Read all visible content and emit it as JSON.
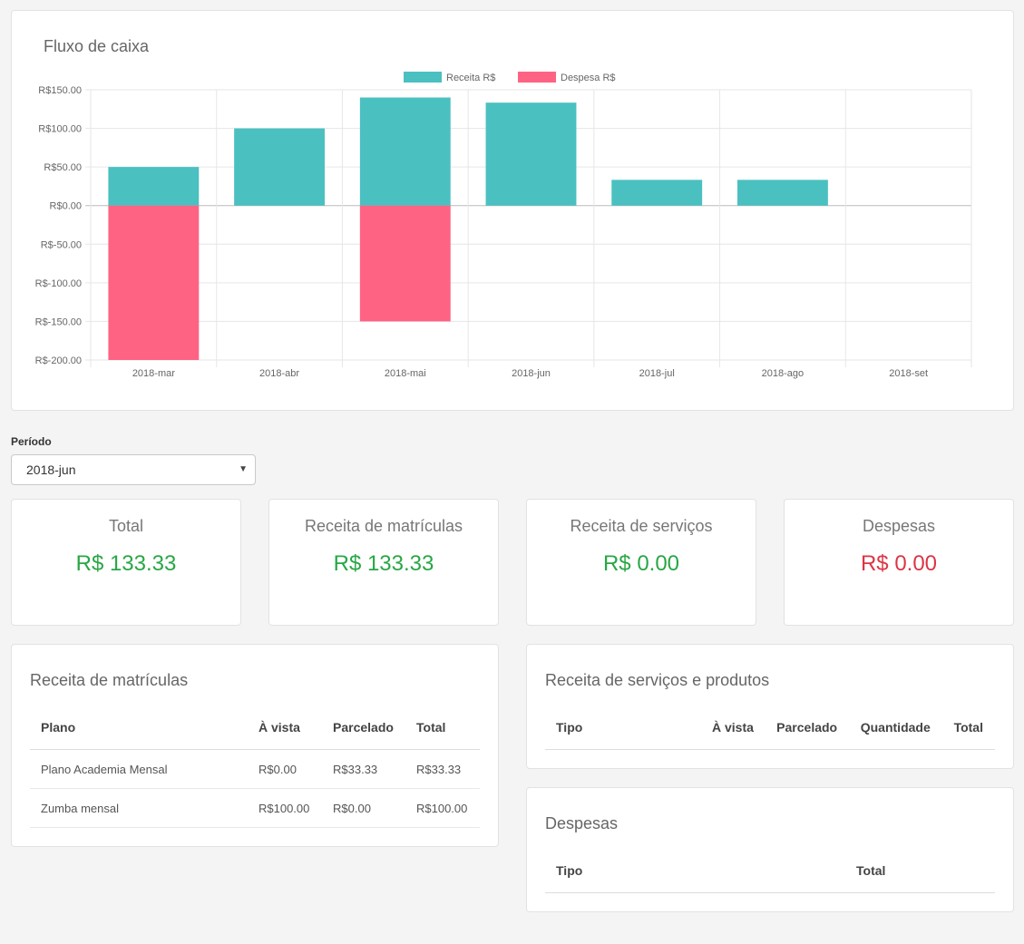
{
  "chart_card": {
    "title": "Fluxo de caixa"
  },
  "chart_data": {
    "type": "bar",
    "categories": [
      "2018-mar",
      "2018-abr",
      "2018-mai",
      "2018-jun",
      "2018-jul",
      "2018-ago",
      "2018-set"
    ],
    "series": [
      {
        "name": "Receita R$",
        "color": "#4bc0c0",
        "values": [
          50,
          100,
          140,
          133.33,
          33.33,
          33.33,
          0
        ]
      },
      {
        "name": "Despesa R$",
        "color": "#ff6384",
        "values": [
          -200,
          0,
          -150,
          0,
          0,
          0,
          0
        ]
      }
    ],
    "ylim": [
      -200,
      150
    ],
    "yticks": [
      "R$150.00",
      "R$100.00",
      "R$50.00",
      "R$0.00",
      "R$-50.00",
      "R$-100.00",
      "R$-150.00",
      "R$-200.00"
    ],
    "ytick_values": [
      150,
      100,
      50,
      0,
      -50,
      -100,
      -150,
      -200
    ],
    "legend": "top-center",
    "grid": true,
    "stacked": true
  },
  "periodo": {
    "label": "Período",
    "selected": "2018-jun"
  },
  "stats": {
    "total": {
      "label": "Total",
      "value": "R$ 133.33"
    },
    "matriculas": {
      "label": "Receita de matrículas",
      "value": "R$ 133.33"
    },
    "servicos": {
      "label": "Receita de serviços",
      "value": "R$ 0.00"
    },
    "despesas": {
      "label": "Despesas",
      "value": "R$ 0.00"
    }
  },
  "matriculas_table": {
    "title": "Receita de matrículas",
    "headers": [
      "Plano",
      "À vista",
      "Parcelado",
      "Total"
    ],
    "rows": [
      [
        "Plano Academia Mensal",
        "R$0.00",
        "R$33.33",
        "R$33.33"
      ],
      [
        "Zumba mensal",
        "R$100.00",
        "R$0.00",
        "R$100.00"
      ]
    ]
  },
  "servicos_table": {
    "title": "Receita de serviços e produtos",
    "headers": [
      "Tipo",
      "À vista",
      "Parcelado",
      "Quantidade",
      "Total"
    ]
  },
  "despesas_table": {
    "title": "Despesas",
    "headers": [
      "Tipo",
      "Total"
    ]
  }
}
